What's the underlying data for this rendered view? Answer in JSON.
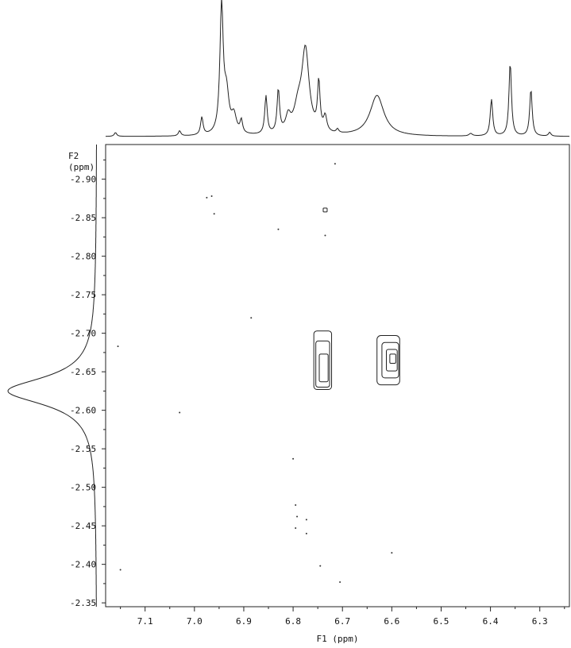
{
  "chart_data": {
    "type": "contour",
    "x_axis": {
      "label": "F1 (ppm)",
      "ticks": [
        "7.1",
        "7.0",
        "6.9",
        "6.8",
        "6.7",
        "6.6",
        "6.5",
        "6.4",
        "6.3"
      ],
      "range": [
        7.18,
        6.24
      ]
    },
    "y_axis": {
      "label_line1": "F2",
      "label_line2": "(ppm)",
      "ticks": [
        "-2.90",
        "-2.85",
        "-2.80",
        "-2.75",
        "-2.70",
        "-2.65",
        "-2.60",
        "-2.55",
        "-2.50",
        "-2.45",
        "-2.40",
        "-2.35"
      ],
      "range": [
        -2.945,
        -2.345
      ]
    },
    "top_projection": {
      "peaks": [
        {
          "x": 6.945,
          "h": 1.0,
          "w": 0.004
        },
        {
          "x": 6.935,
          "h": 0.3,
          "w": 0.006
        },
        {
          "x": 6.92,
          "h": 0.14,
          "w": 0.006
        },
        {
          "x": 6.985,
          "h": 0.14,
          "w": 0.003
        },
        {
          "x": 7.03,
          "h": 0.04,
          "w": 0.003
        },
        {
          "x": 6.905,
          "h": 0.1,
          "w": 0.003
        },
        {
          "x": 6.855,
          "h": 0.3,
          "w": 0.003
        },
        {
          "x": 6.83,
          "h": 0.34,
          "w": 0.003
        },
        {
          "x": 6.81,
          "h": 0.12,
          "w": 0.006
        },
        {
          "x": 6.775,
          "h": 0.65,
          "w": 0.009
        },
        {
          "x": 6.79,
          "h": 0.18,
          "w": 0.01
        },
        {
          "x": 6.748,
          "h": 0.38,
          "w": 0.003
        },
        {
          "x": 6.735,
          "h": 0.12,
          "w": 0.004
        },
        {
          "x": 6.71,
          "h": 0.03,
          "w": 0.003
        },
        {
          "x": 6.63,
          "h": 0.32,
          "w": 0.017
        },
        {
          "x": 6.398,
          "h": 0.29,
          "w": 0.003
        },
        {
          "x": 6.36,
          "h": 0.58,
          "w": 0.003
        },
        {
          "x": 6.318,
          "h": 0.37,
          "w": 0.003
        },
        {
          "x": 6.28,
          "h": 0.03,
          "w": 0.003
        },
        {
          "x": 7.16,
          "h": 0.03,
          "w": 0.003
        },
        {
          "x": 6.44,
          "h": 0.02,
          "w": 0.004
        }
      ]
    },
    "left_projection": {
      "peaks": [
        {
          "y": -2.625,
          "h": 1.0,
          "w": 0.022
        }
      ]
    },
    "contours": [
      {
        "cx": 6.74,
        "cy": -2.665,
        "rx": 0.018,
        "ry": 0.038
      },
      {
        "cx": 6.74,
        "cy": -2.66,
        "rx": 0.014,
        "ry": 0.03
      },
      {
        "cx": 6.738,
        "cy": -2.655,
        "rx": 0.009,
        "ry": 0.018
      },
      {
        "cx": 6.607,
        "cy": -2.665,
        "rx": 0.023,
        "ry": 0.032
      },
      {
        "cx": 6.603,
        "cy": -2.665,
        "rx": 0.017,
        "ry": 0.023
      },
      {
        "cx": 6.6,
        "cy": -2.665,
        "rx": 0.011,
        "ry": 0.014
      },
      {
        "cx": 6.598,
        "cy": -2.667,
        "rx": 0.006,
        "ry": 0.006
      },
      {
        "cx": 6.735,
        "cy": -2.86,
        "rx": 0.004,
        "ry": 0.0025
      }
    ],
    "noise_dots": [
      {
        "x": 6.715,
        "y": -2.92
      },
      {
        "x": 6.965,
        "y": -2.878
      },
      {
        "x": 6.975,
        "y": -2.876
      },
      {
        "x": 6.96,
        "y": -2.855
      },
      {
        "x": 6.83,
        "y": -2.835
      },
      {
        "x": 6.735,
        "y": -2.827
      },
      {
        "x": 6.885,
        "y": -2.72
      },
      {
        "x": 7.155,
        "y": -2.683
      },
      {
        "x": 7.03,
        "y": -2.597
      },
      {
        "x": 6.8,
        "y": -2.537
      },
      {
        "x": 6.795,
        "y": -2.477
      },
      {
        "x": 6.792,
        "y": -2.462
      },
      {
        "x": 6.773,
        "y": -2.458
      },
      {
        "x": 6.795,
        "y": -2.447
      },
      {
        "x": 6.773,
        "y": -2.44
      },
      {
        "x": 6.745,
        "y": -2.398
      },
      {
        "x": 6.705,
        "y": -2.377
      },
      {
        "x": 7.15,
        "y": -2.393
      },
      {
        "x": 6.6,
        "y": -2.415
      }
    ]
  }
}
